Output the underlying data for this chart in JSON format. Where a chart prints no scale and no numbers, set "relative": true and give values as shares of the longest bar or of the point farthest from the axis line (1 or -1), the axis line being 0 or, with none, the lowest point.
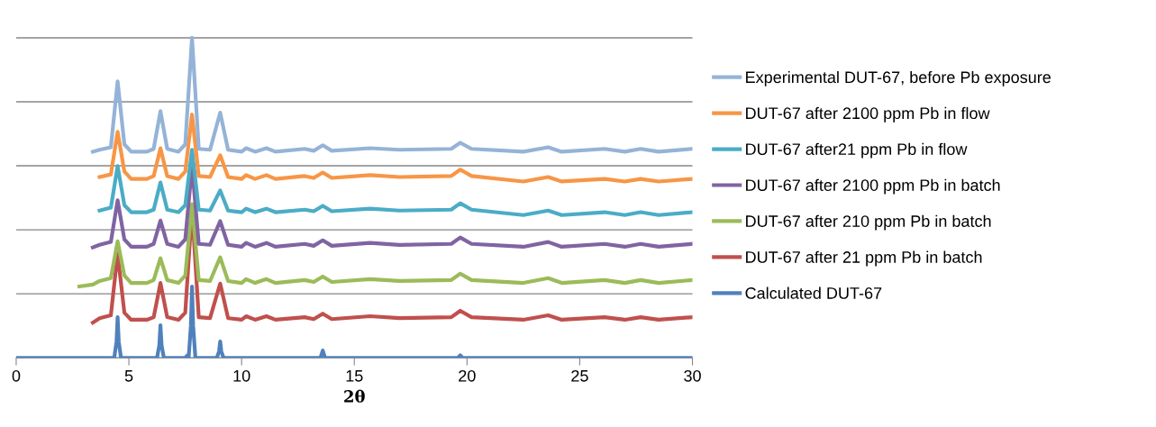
{
  "chart_data": {
    "type": "line",
    "xlabel": "2θ",
    "relative": true,
    "xlim": [
      0,
      30
    ],
    "xticks": [
      0,
      5,
      10,
      15,
      20,
      25,
      30
    ],
    "grid": "y",
    "legend": "right",
    "marker": "none",
    "line_style": "solid",
    "x": [
      2.8,
      3.4,
      3.7,
      4.2,
      4.5,
      4.8,
      5.1,
      5.8,
      6.1,
      6.4,
      6.7,
      7.2,
      7.5,
      7.8,
      8.1,
      8.6,
      9.05,
      9.4,
      10.0,
      10.2,
      10.6,
      11.1,
      11.5,
      12.8,
      13.2,
      13.6,
      14.0,
      15.7,
      17.0,
      19.3,
      19.7,
      20.2,
      22.5,
      23.6,
      24.2,
      26.1,
      27.0,
      27.7,
      28.5,
      30.0
    ],
    "series": [
      {
        "name": "Experimental DUT-67, before Pb exposure",
        "color": "#95b3d7",
        "values": [
          null,
          0.644,
          0.65,
          0.658,
          0.864,
          0.667,
          0.644,
          0.644,
          0.653,
          0.771,
          0.653,
          0.644,
          0.667,
          1.0,
          0.653,
          0.65,
          0.766,
          0.65,
          0.644,
          0.655,
          0.644,
          0.655,
          0.644,
          0.653,
          0.647,
          0.664,
          0.647,
          0.655,
          0.65,
          0.653,
          0.672,
          0.653,
          0.644,
          0.658,
          0.644,
          0.653,
          0.644,
          0.653,
          0.644,
          0.653
        ]
      },
      {
        "name": "DUT-67 after 2100 ppm Pb in flow",
        "color": "#f79646",
        "values": [
          null,
          null,
          0.565,
          0.573,
          0.706,
          0.582,
          0.559,
          0.559,
          0.568,
          0.655,
          0.568,
          0.559,
          0.582,
          0.76,
          0.568,
          0.565,
          0.633,
          0.565,
          0.559,
          0.571,
          0.559,
          0.571,
          0.559,
          0.568,
          0.562,
          0.579,
          0.562,
          0.571,
          0.565,
          0.568,
          0.588,
          0.568,
          0.551,
          0.565,
          0.551,
          0.559,
          0.551,
          0.559,
          0.551,
          0.559
        ]
      },
      {
        "name": "DUT-67 after21 ppm Pb in flow",
        "color": "#4bacc6",
        "values": [
          null,
          null,
          0.46,
          0.469,
          0.599,
          0.477,
          0.455,
          0.455,
          0.463,
          0.548,
          0.463,
          0.455,
          0.477,
          0.65,
          0.463,
          0.46,
          0.523,
          0.46,
          0.455,
          0.466,
          0.455,
          0.466,
          0.455,
          0.463,
          0.458,
          0.475,
          0.458,
          0.466,
          0.46,
          0.463,
          0.483,
          0.463,
          0.446,
          0.46,
          0.446,
          0.455,
          0.446,
          0.455,
          0.446,
          0.455
        ]
      },
      {
        "name": "DUT-67 after 2100 ppm Pb in batch",
        "color": "#8064a2",
        "values": [
          null,
          0.345,
          0.353,
          0.362,
          0.492,
          0.37,
          0.347,
          0.347,
          0.356,
          0.429,
          0.356,
          0.347,
          0.37,
          0.599,
          0.356,
          0.353,
          0.427,
          0.353,
          0.347,
          0.359,
          0.347,
          0.359,
          0.347,
          0.356,
          0.35,
          0.367,
          0.35,
          0.359,
          0.353,
          0.356,
          0.376,
          0.356,
          0.347,
          0.362,
          0.347,
          0.356,
          0.347,
          0.356,
          0.347,
          0.356
        ]
      },
      {
        "name": "DUT-67 after 210 ppm Pb in batch",
        "color": "#9bbb59",
        "values": [
          0.223,
          0.229,
          0.24,
          0.249,
          0.364,
          0.257,
          0.234,
          0.234,
          0.243,
          0.311,
          0.243,
          0.234,
          0.257,
          0.48,
          0.243,
          0.24,
          0.314,
          0.24,
          0.234,
          0.246,
          0.234,
          0.246,
          0.234,
          0.243,
          0.237,
          0.254,
          0.237,
          0.246,
          0.24,
          0.243,
          0.263,
          0.243,
          0.234,
          0.249,
          0.234,
          0.243,
          0.234,
          0.243,
          0.234,
          0.243
        ]
      },
      {
        "name": "DUT-67 after 21 ppm Pb in batch",
        "color": "#c0504d",
        "values": [
          null,
          0.11,
          0.124,
          0.133,
          0.325,
          0.141,
          0.119,
          0.119,
          0.127,
          0.234,
          0.127,
          0.119,
          0.141,
          0.466,
          0.127,
          0.124,
          0.232,
          0.124,
          0.119,
          0.13,
          0.119,
          0.13,
          0.119,
          0.127,
          0.121,
          0.138,
          0.121,
          0.13,
          0.124,
          0.127,
          0.147,
          0.127,
          0.119,
          0.133,
          0.119,
          0.127,
          0.119,
          0.127,
          0.119,
          0.127
        ]
      },
      {
        "name": "Calculated DUT-67",
        "color": "#4f81bd",
        "x": [
          0,
          4.35,
          4.45,
          4.5,
          4.55,
          4.65,
          6.25,
          6.35,
          6.4,
          6.45,
          6.55,
          7.5,
          7.6,
          7.65,
          7.75,
          7.8,
          7.85,
          7.95,
          8.9,
          9.0,
          9.05,
          9.1,
          9.2,
          13.5,
          13.6,
          13.7,
          19.6,
          19.7,
          19.8,
          30
        ],
        "values": [
          0,
          0,
          0.05,
          0.127,
          0.05,
          0,
          0,
          0.04,
          0.102,
          0.04,
          0,
          0,
          0.008,
          0,
          0.1,
          0.223,
          0.1,
          0,
          0,
          0.02,
          0.051,
          0.02,
          0,
          0,
          0.023,
          0,
          0,
          0.008,
          0,
          0
        ]
      }
    ]
  }
}
